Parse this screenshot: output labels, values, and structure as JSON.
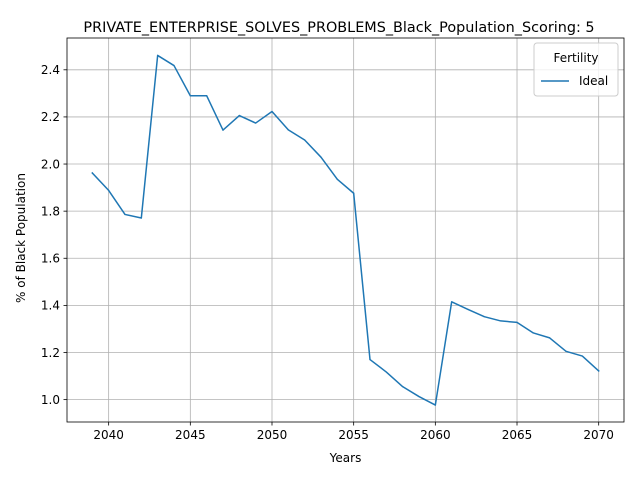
{
  "chart_data": {
    "type": "line",
    "title": "PRIVATE_ENTERPRISE_SOLVES_PROBLEMS_Black_Population_Scoring: 5",
    "xlabel": "Years",
    "ylabel": "% of Black Population",
    "xlim": [
      2037.45,
      2071.55
    ],
    "ylim": [
      0.905,
      2.535
    ],
    "xticks": [
      2040,
      2045,
      2050,
      2055,
      2060,
      2065,
      2070
    ],
    "yticks": [
      1.0,
      1.2,
      1.4,
      1.6,
      1.8,
      2.0,
      2.2,
      2.4
    ],
    "grid": true,
    "legend": {
      "title": "Fertility",
      "placement": "upper-right"
    },
    "series": [
      {
        "name": "Ideal",
        "color": "#1f77b4",
        "x": [
          2039,
          2040,
          2041,
          2042,
          2043,
          2044,
          2045,
          2046,
          2047,
          2048,
          2049,
          2050,
          2051,
          2052,
          2053,
          2054,
          2055,
          2056,
          2057,
          2058,
          2059,
          2060,
          2061,
          2062,
          2063,
          2064,
          2065,
          2066,
          2067,
          2068,
          2069,
          2070
        ],
        "y": [
          1.962,
          1.888,
          1.786,
          1.771,
          2.461,
          2.418,
          2.29,
          2.29,
          2.144,
          2.206,
          2.174,
          2.223,
          2.145,
          2.102,
          2.029,
          1.935,
          1.876,
          1.17,
          1.117,
          1.055,
          1.013,
          0.977,
          1.415,
          1.383,
          1.352,
          1.334,
          1.328,
          1.283,
          1.262,
          1.205,
          1.185,
          1.122
        ]
      }
    ]
  }
}
